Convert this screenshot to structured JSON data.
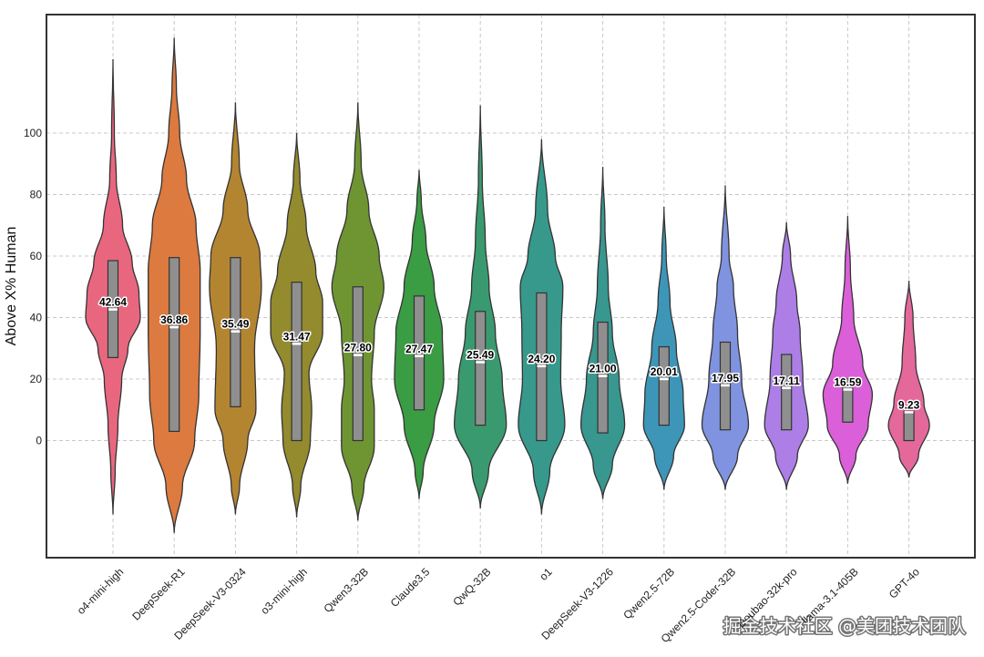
{
  "chart_data": {
    "type": "violin",
    "ylabel": "Above X% Human",
    "xlabel": "",
    "ylim": [
      -38,
      138
    ],
    "yticks": [
      0,
      20,
      40,
      60,
      80,
      100
    ],
    "grid": true,
    "categories": [
      "o4-mini-high",
      "DeepSeek-R1",
      "DeepSeek-V3-0324",
      "o3-mini-high",
      "Qwen3-32B",
      "Claude3.5",
      "QwQ-32B",
      "o1",
      "DeepSeek-V3-1226",
      "Qwen2.5-72B",
      "Qwen2.5-Coder-32B",
      "Doubao-32k-pro",
      "llama-3.1-405B",
      "GPT-4o"
    ],
    "means": [
      42.64,
      36.86,
      35.49,
      31.47,
      27.8,
      27.47,
      25.49,
      24.2,
      21.0,
      20.01,
      17.95,
      17.11,
      16.59,
      9.23
    ],
    "mean_labels": [
      "42.64",
      "36.86",
      "35.49",
      "31.47",
      "27.80",
      "27.47",
      "25.49",
      "24.20",
      "21.00",
      "20.01",
      "17.95",
      "17.11",
      "16.59",
      "9.23"
    ],
    "q1": [
      27,
      3,
      11,
      0,
      0,
      10,
      5,
      0,
      2.5,
      5,
      3.5,
      3.5,
      6,
      0
    ],
    "q3": [
      58.5,
      59.5,
      59.5,
      51.5,
      50,
      47,
      42,
      48,
      38.5,
      30.5,
      32,
      28,
      20,
      9.5
    ],
    "range_min": [
      -24,
      -30,
      -24,
      -25,
      -26,
      -19,
      -22,
      -24,
      -19,
      -16,
      -16,
      -16,
      -14,
      -12
    ],
    "range_max": [
      124,
      131,
      110,
      100,
      110,
      88,
      109,
      98,
      89,
      76,
      83,
      71,
      73,
      52
    ],
    "colors": [
      "#e8677f",
      "#dc7a3f",
      "#b48530",
      "#938b2d",
      "#6f9532",
      "#3a9c43",
      "#3a9a6f",
      "#36998b",
      "#38978f",
      "#3d96b8",
      "#7f93e0",
      "#ac7ee6",
      "#db5fd9",
      "#e5689b"
    ],
    "profiles": [
      [
        [
          -24,
          0.0
        ],
        [
          -10,
          0.08
        ],
        [
          5,
          0.18
        ],
        [
          20,
          0.32
        ],
        [
          30,
          0.55
        ],
        [
          40,
          1.0
        ],
        [
          48,
          0.95
        ],
        [
          58,
          0.7
        ],
        [
          70,
          0.35
        ],
        [
          85,
          0.12
        ],
        [
          100,
          0.05
        ],
        [
          124,
          0.0
        ]
      ],
      [
        [
          -30,
          0.0
        ],
        [
          -15,
          0.3
        ],
        [
          0,
          0.75
        ],
        [
          15,
          0.9
        ],
        [
          35,
          0.95
        ],
        [
          55,
          0.95
        ],
        [
          70,
          0.8
        ],
        [
          85,
          0.45
        ],
        [
          100,
          0.2
        ],
        [
          115,
          0.08
        ],
        [
          131,
          0.0
        ]
      ],
      [
        [
          -24,
          0.0
        ],
        [
          -15,
          0.15
        ],
        [
          0,
          0.45
        ],
        [
          10,
          0.75
        ],
        [
          30,
          0.7
        ],
        [
          50,
          0.95
        ],
        [
          60,
          0.9
        ],
        [
          75,
          0.45
        ],
        [
          90,
          0.14
        ],
        [
          110,
          0.0
        ]
      ],
      [
        [
          -25,
          0.0
        ],
        [
          -15,
          0.15
        ],
        [
          0,
          0.5
        ],
        [
          10,
          0.55
        ],
        [
          22,
          0.45
        ],
        [
          35,
          0.95
        ],
        [
          45,
          0.95
        ],
        [
          55,
          0.7
        ],
        [
          70,
          0.35
        ],
        [
          85,
          0.12
        ],
        [
          100,
          0.0
        ]
      ],
      [
        [
          -26,
          0.0
        ],
        [
          -15,
          0.22
        ],
        [
          -2,
          0.6
        ],
        [
          10,
          0.6
        ],
        [
          20,
          0.5
        ],
        [
          35,
          0.6
        ],
        [
          50,
          0.95
        ],
        [
          60,
          0.78
        ],
        [
          75,
          0.4
        ],
        [
          90,
          0.12
        ],
        [
          110,
          0.0
        ]
      ],
      [
        [
          -19,
          0.0
        ],
        [
          -10,
          0.15
        ],
        [
          5,
          0.55
        ],
        [
          20,
          0.9
        ],
        [
          35,
          0.85
        ],
        [
          50,
          0.55
        ],
        [
          65,
          0.25
        ],
        [
          78,
          0.08
        ],
        [
          88,
          0.0
        ]
      ],
      [
        [
          -22,
          0.0
        ],
        [
          -10,
          0.3
        ],
        [
          5,
          0.95
        ],
        [
          20,
          0.8
        ],
        [
          35,
          0.55
        ],
        [
          50,
          0.32
        ],
        [
          65,
          0.18
        ],
        [
          85,
          0.07
        ],
        [
          109,
          0.0
        ]
      ],
      [
        [
          -24,
          0.0
        ],
        [
          -10,
          0.3
        ],
        [
          5,
          0.85
        ],
        [
          20,
          0.7
        ],
        [
          35,
          0.72
        ],
        [
          50,
          0.78
        ],
        [
          60,
          0.5
        ],
        [
          75,
          0.22
        ],
        [
          98,
          0.0
        ]
      ],
      [
        [
          -19,
          0.0
        ],
        [
          -8,
          0.35
        ],
        [
          5,
          0.8
        ],
        [
          20,
          0.6
        ],
        [
          35,
          0.35
        ],
        [
          50,
          0.2
        ],
        [
          70,
          0.08
        ],
        [
          89,
          0.0
        ]
      ],
      [
        [
          -16,
          0.0
        ],
        [
          -5,
          0.35
        ],
        [
          5,
          0.75
        ],
        [
          15,
          0.7
        ],
        [
          30,
          0.45
        ],
        [
          45,
          0.22
        ],
        [
          60,
          0.08
        ],
        [
          76,
          0.0
        ]
      ],
      [
        [
          -16,
          0.0
        ],
        [
          -5,
          0.45
        ],
        [
          5,
          0.85
        ],
        [
          20,
          0.6
        ],
        [
          35,
          0.45
        ],
        [
          50,
          0.3
        ],
        [
          60,
          0.14
        ],
        [
          83,
          0.0
        ]
      ],
      [
        [
          -16,
          0.0
        ],
        [
          -5,
          0.4
        ],
        [
          5,
          0.8
        ],
        [
          20,
          0.6
        ],
        [
          35,
          0.5
        ],
        [
          45,
          0.38
        ],
        [
          60,
          0.15
        ],
        [
          71,
          0.0
        ]
      ],
      [
        [
          -14,
          0.0
        ],
        [
          -5,
          0.3
        ],
        [
          5,
          0.75
        ],
        [
          15,
          0.9
        ],
        [
          25,
          0.55
        ],
        [
          40,
          0.22
        ],
        [
          55,
          0.1
        ],
        [
          73,
          0.0
        ]
      ],
      [
        [
          -12,
          0.0
        ],
        [
          -5,
          0.35
        ],
        [
          5,
          0.75
        ],
        [
          12,
          0.55
        ],
        [
          25,
          0.25
        ],
        [
          40,
          0.15
        ],
        [
          52,
          0.0
        ]
      ]
    ]
  },
  "watermark": "掘金技术社区 @美团技术团队"
}
